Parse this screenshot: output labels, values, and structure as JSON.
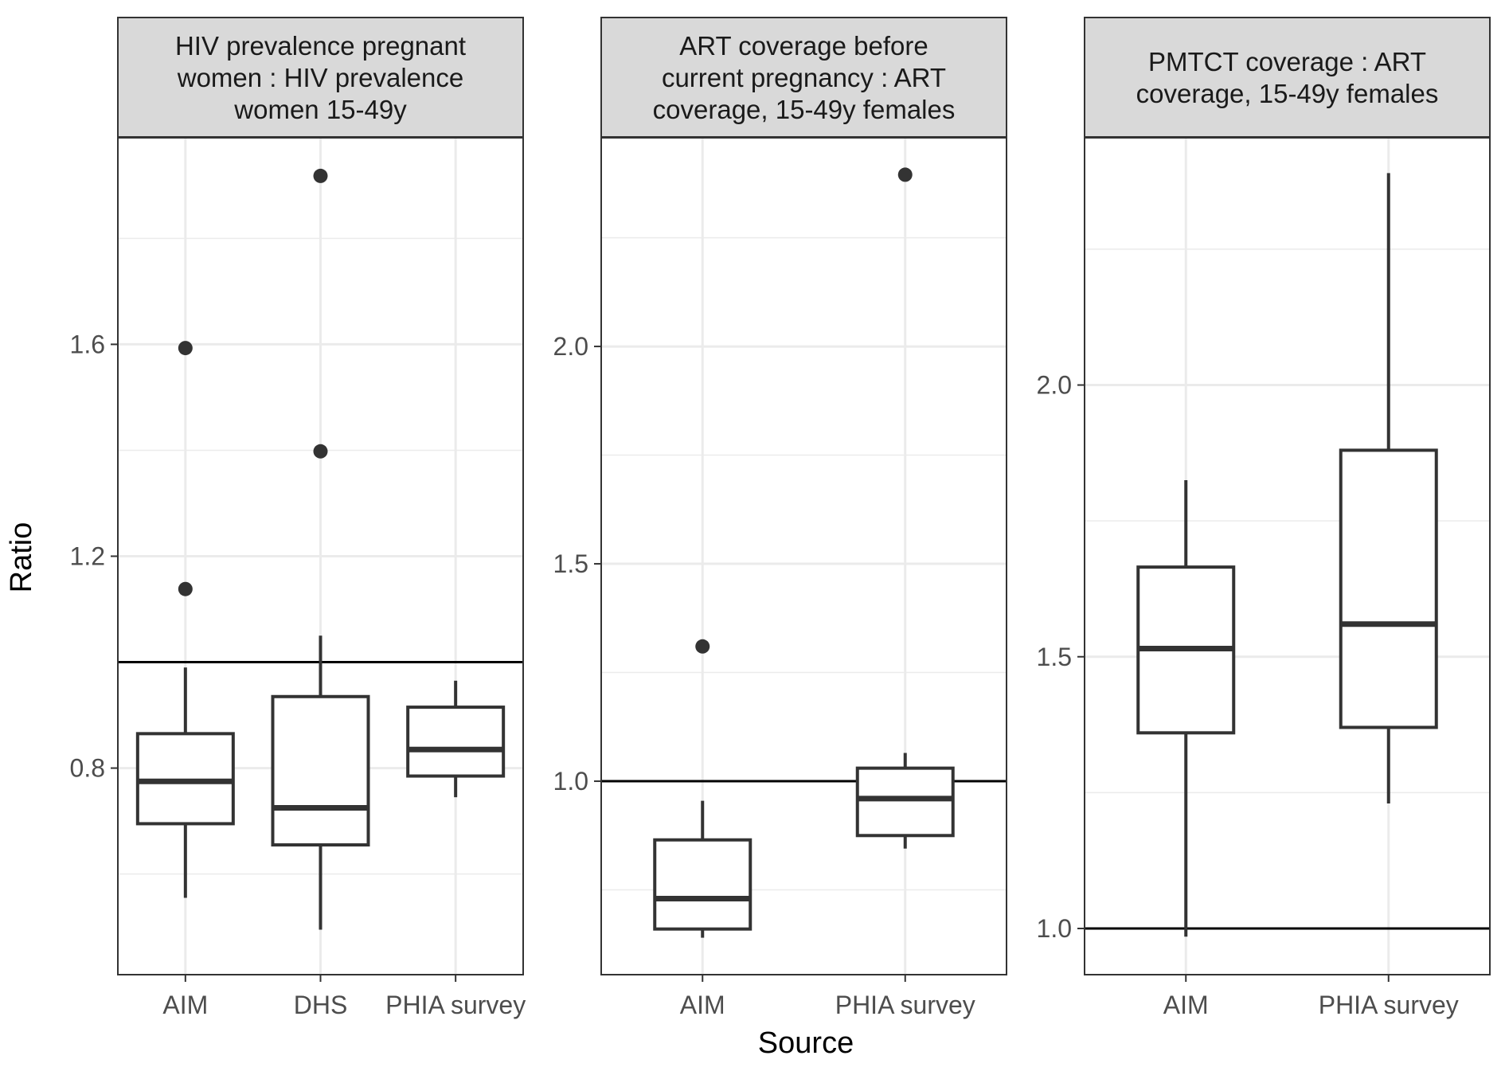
{
  "chart_data": {
    "type": "box",
    "xlabel": "Source",
    "ylabel": "Ratio",
    "reference_line": 1.0,
    "grid": true,
    "panels": [
      {
        "title_lines": [
          "HIV prevalence pregnant",
          "women : HIV prevalence",
          "women 15-49y"
        ],
        "categories": [
          "AIM",
          "DHS",
          "PHIA survey"
        ],
        "ylim": [
          0.41,
          1.99
        ],
        "major_ticks": [
          0.8,
          1.2,
          1.6
        ],
        "minor_ticks": [
          0.6,
          1.0,
          1.4,
          1.8
        ],
        "tick_labels": [
          "0.8",
          "1.2",
          "1.6"
        ],
        "boxes": [
          {
            "category": "AIM",
            "min": 0.555,
            "q1": 0.695,
            "median": 0.775,
            "q3": 0.865,
            "max": 0.99,
            "outliers": [
              1.138,
              1.593
            ]
          },
          {
            "category": "DHS",
            "min": 0.495,
            "q1": 0.655,
            "median": 0.725,
            "q3": 0.935,
            "max": 1.05,
            "outliers": [
              1.398,
              1.918
            ]
          },
          {
            "category": "PHIA survey",
            "min": 0.745,
            "q1": 0.785,
            "median": 0.835,
            "q3": 0.915,
            "max": 0.965,
            "outliers": []
          }
        ]
      },
      {
        "title_lines": [
          "ART coverage before",
          "current pregnancy : ART",
          "coverage, 15-49y females"
        ],
        "categories": [
          "AIM",
          "PHIA survey"
        ],
        "ylim": [
          0.555,
          2.48
        ],
        "major_ticks": [
          1.0,
          1.5,
          2.0
        ],
        "minor_ticks": [
          0.75,
          1.25,
          1.75,
          2.25
        ],
        "tick_labels": [
          "1.0",
          "1.5",
          "2.0"
        ],
        "boxes": [
          {
            "category": "AIM",
            "min": 0.64,
            "q1": 0.66,
            "median": 0.73,
            "q3": 0.865,
            "max": 0.955,
            "outliers": [
              1.31
            ]
          },
          {
            "category": "PHIA survey",
            "min": 0.845,
            "q1": 0.875,
            "median": 0.96,
            "q3": 1.03,
            "max": 1.065,
            "outliers": [
              2.395
            ]
          }
        ]
      },
      {
        "title_lines": [
          "PMTCT coverage : ART",
          "coverage, 15-49y females"
        ],
        "categories": [
          "AIM",
          "PHIA survey"
        ],
        "ylim": [
          0.915,
          2.455
        ],
        "major_ticks": [
          1.0,
          1.5,
          2.0
        ],
        "minor_ticks": [
          1.25,
          1.75,
          2.25
        ],
        "tick_labels": [
          "1.0",
          "1.5",
          "2.0"
        ],
        "boxes": [
          {
            "category": "AIM",
            "min": 0.985,
            "q1": 1.36,
            "median": 1.515,
            "q3": 1.665,
            "max": 1.825,
            "outliers": []
          },
          {
            "category": "PHIA survey",
            "min": 1.23,
            "q1": 1.37,
            "median": 1.56,
            "q3": 1.88,
            "max": 2.39,
            "outliers": []
          }
        ]
      }
    ]
  }
}
